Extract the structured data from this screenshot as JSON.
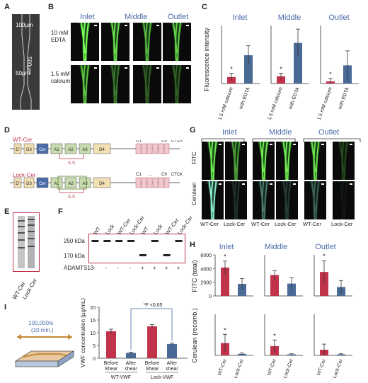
{
  "panels": {
    "A": {
      "label": "A",
      "dim_100": "100µm",
      "dim_500": "500µm",
      "dim_50": "50µm"
    },
    "B": {
      "label": "B",
      "cols": [
        "Inlet",
        "Middle",
        "Outlet"
      ],
      "rows": [
        "10 mM\nEDTA",
        "1.5 mM\ncalcium"
      ]
    },
    "C": {
      "label": "C"
    },
    "D": {
      "label": "D",
      "constructs": [
        {
          "name": "WT-Cer",
          "domains": [
            "D'",
            "D3",
            "Cer",
            "A1",
            "A2",
            "A3",
            "D4",
            "C1",
            "C6",
            "CTCK"
          ],
          "ss": "S-S"
        },
        {
          "name": "Lock-Cer",
          "domains": [
            "D'",
            "D3",
            "Cer",
            "A1",
            "A2",
            "A3",
            "D4",
            "C1",
            "C6",
            "CTCK"
          ],
          "ss": "S-S"
        }
      ]
    },
    "E": {
      "label": "E",
      "lanes": [
        "WT-Cer",
        "Lock-Cer"
      ]
    },
    "F": {
      "label": "F",
      "lanes": [
        "WT",
        "Lock",
        "WT-Cer",
        "Lock-Cer",
        "WT",
        "Lock",
        "WT-Cer",
        "Lock-Cer"
      ],
      "mw": [
        "250 kDa",
        "170 kDa"
      ],
      "adamts_label": "ADAMTS13",
      "adamts": [
        "-",
        "-",
        "-",
        "-",
        "+",
        "+",
        "+",
        "+"
      ]
    },
    "G": {
      "label": "G",
      "cols": [
        "Inlet",
        "Middle",
        "Outlet"
      ],
      "rows": [
        "FITC",
        "Cerulean"
      ],
      "lanes": [
        "WT-Cer",
        "Lock-Cer",
        "WT-Cer",
        "Lock-Cer",
        "WT-Cer",
        "Lock-Cer"
      ]
    },
    "H": {
      "label": "H"
    },
    "I": {
      "label": "I",
      "shear": "100,000/s",
      "time": "(10 min.)"
    }
  },
  "chart_data": [
    {
      "id": "C",
      "type": "bar",
      "ylabel": "Fluorescence intensity",
      "title": "",
      "groups": [
        "Inlet",
        "Middle",
        "Outlet"
      ],
      "categories": [
        "1.5 mM calcium",
        "with EDTA"
      ],
      "ylim": [
        0,
        4000
      ],
      "series": [
        {
          "group": "Inlet",
          "values": [
            450,
            1950
          ],
          "errors": [
            250,
            650
          ],
          "sig": [
            "*",
            ""
          ]
        },
        {
          "group": "Middle",
          "values": [
            500,
            2800
          ],
          "errors": [
            200,
            950
          ],
          "sig": [
            "*",
            ""
          ]
        },
        {
          "group": "Outlet",
          "values": [
            150,
            1250
          ],
          "errors": [
            200,
            1000
          ],
          "sig": [
            "*",
            ""
          ]
        }
      ],
      "colors": [
        "#c0334a",
        "#4a6a96"
      ]
    },
    {
      "id": "I",
      "type": "bar",
      "ylabel": "VWF concentration (µg/mL)",
      "categories": [
        "Before Shear",
        "After shear",
        "Before Shear",
        "After shear"
      ],
      "group_labels": [
        "WT-VWF",
        "Lock-VWF"
      ],
      "values": [
        10.6,
        2.1,
        12.5,
        5.6
      ],
      "errors": [
        0.8,
        0.3,
        0.7,
        0.4
      ],
      "ylim": [
        0,
        20
      ],
      "yticks": [
        0,
        5,
        10,
        15,
        20
      ],
      "bracket": "*P <0.05",
      "colors": [
        "#c0334a",
        "#4a6a96",
        "#c0334a",
        "#4a6a96"
      ]
    },
    {
      "id": "H-top",
      "type": "bar",
      "ylabel": "FITC (total)",
      "groups": [
        "Inlet",
        "Middle",
        "Outlet"
      ],
      "categories": [
        "WT-Cer",
        "Lock-Cer"
      ],
      "ylim": [
        0,
        6000
      ],
      "yticks": [
        0,
        2000,
        4000,
        6000
      ],
      "series": [
        {
          "group": "Inlet",
          "values": [
            4150,
            1750
          ],
          "errors": [
            950,
            800
          ],
          "sig": [
            "*",
            ""
          ]
        },
        {
          "group": "Middle",
          "values": [
            3050,
            1800
          ],
          "errors": [
            650,
            850
          ],
          "sig": [
            "",
            ""
          ]
        },
        {
          "group": "Outlet",
          "values": [
            3500,
            1300
          ],
          "errors": [
            1650,
            950
          ],
          "sig": [
            "*",
            ""
          ]
        }
      ],
      "colors": [
        "#c0334a",
        "#4a6a96"
      ]
    },
    {
      "id": "H-bottom",
      "type": "bar",
      "ylabel": "Cerulean (recomb.)",
      "groups": [
        "Inlet",
        "Middle",
        "Outlet"
      ],
      "categories": [
        "WT-Cer",
        "Lock-Cer"
      ],
      "ylim": [
        0,
        4000
      ],
      "series": [
        {
          "group": "Inlet",
          "values": [
            1200,
            150
          ],
          "errors": [
            850,
            80
          ],
          "sig": [
            "*",
            ""
          ]
        },
        {
          "group": "Middle",
          "values": [
            900,
            100
          ],
          "errors": [
            600,
            60
          ],
          "sig": [
            "*",
            ""
          ]
        },
        {
          "group": "Outlet",
          "values": [
            550,
            100
          ],
          "errors": [
            550,
            60
          ],
          "sig": [
            "",
            ""
          ]
        }
      ],
      "colors": [
        "#c0334a",
        "#4a6a96"
      ]
    }
  ]
}
